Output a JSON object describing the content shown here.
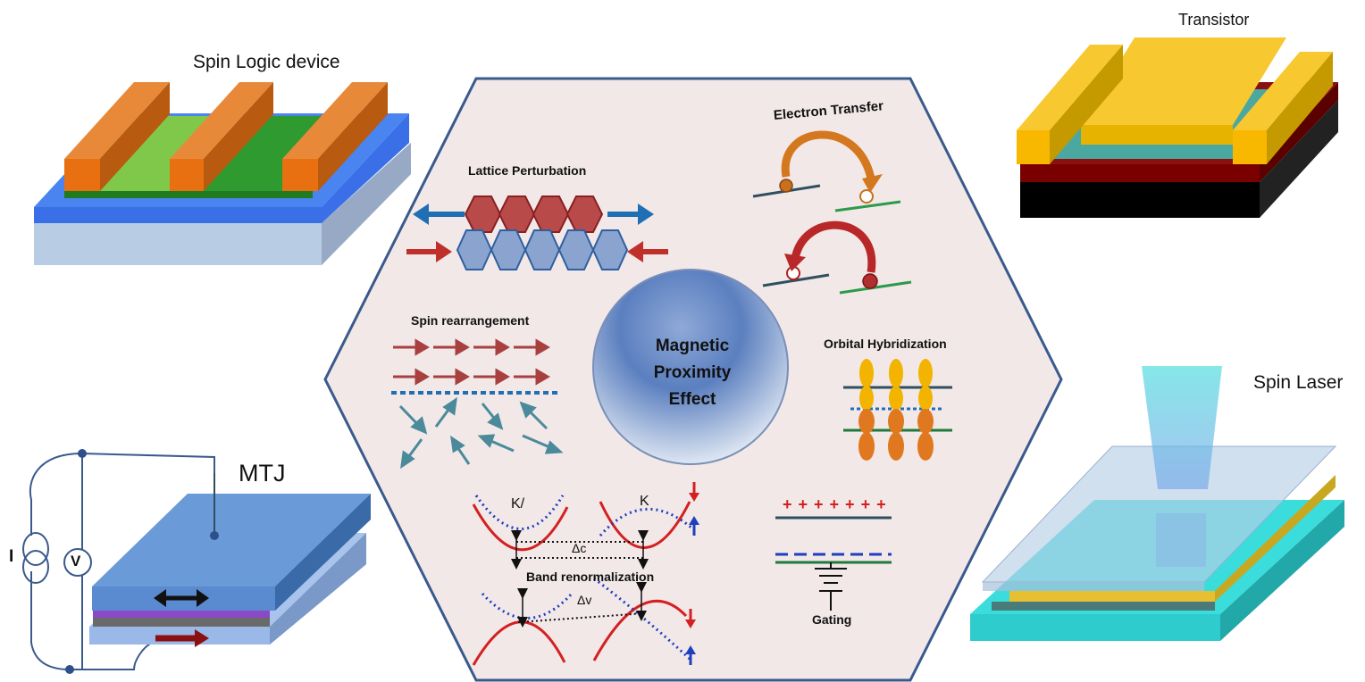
{
  "devices": {
    "spin_logic": "Spin Logic device",
    "transistor": "Transistor",
    "mtj": "MTJ",
    "spin_laser": "Spin Laser",
    "mtj_current": "I",
    "mtj_voltage": "V"
  },
  "center": {
    "line1": "Magnetic",
    "line2": "Proximity",
    "line3": "Effect"
  },
  "mechanisms": {
    "lattice": "Lattice Perturbation",
    "electron_transfer": "Electron Transfer",
    "spin_rearrangement": "Spin rearrangement",
    "orbital": "Orbital Hybridization",
    "band": "Band renormalization",
    "gating": "Gating",
    "k_prime": "K/",
    "k": "K",
    "delta_c": "Δc",
    "delta_v": "Δv",
    "plus_signs": "+ + + + + + +"
  },
  "colors": {
    "hexagon_fill": "#f2e8e8",
    "hexagon_stroke": "#3a5a8c",
    "sphere": "#5b7fbf",
    "red": "#c0302b",
    "blue": "#1f6fb5",
    "teal_arrow": "#4a8a9a",
    "brown_arrow": "#a84040"
  }
}
